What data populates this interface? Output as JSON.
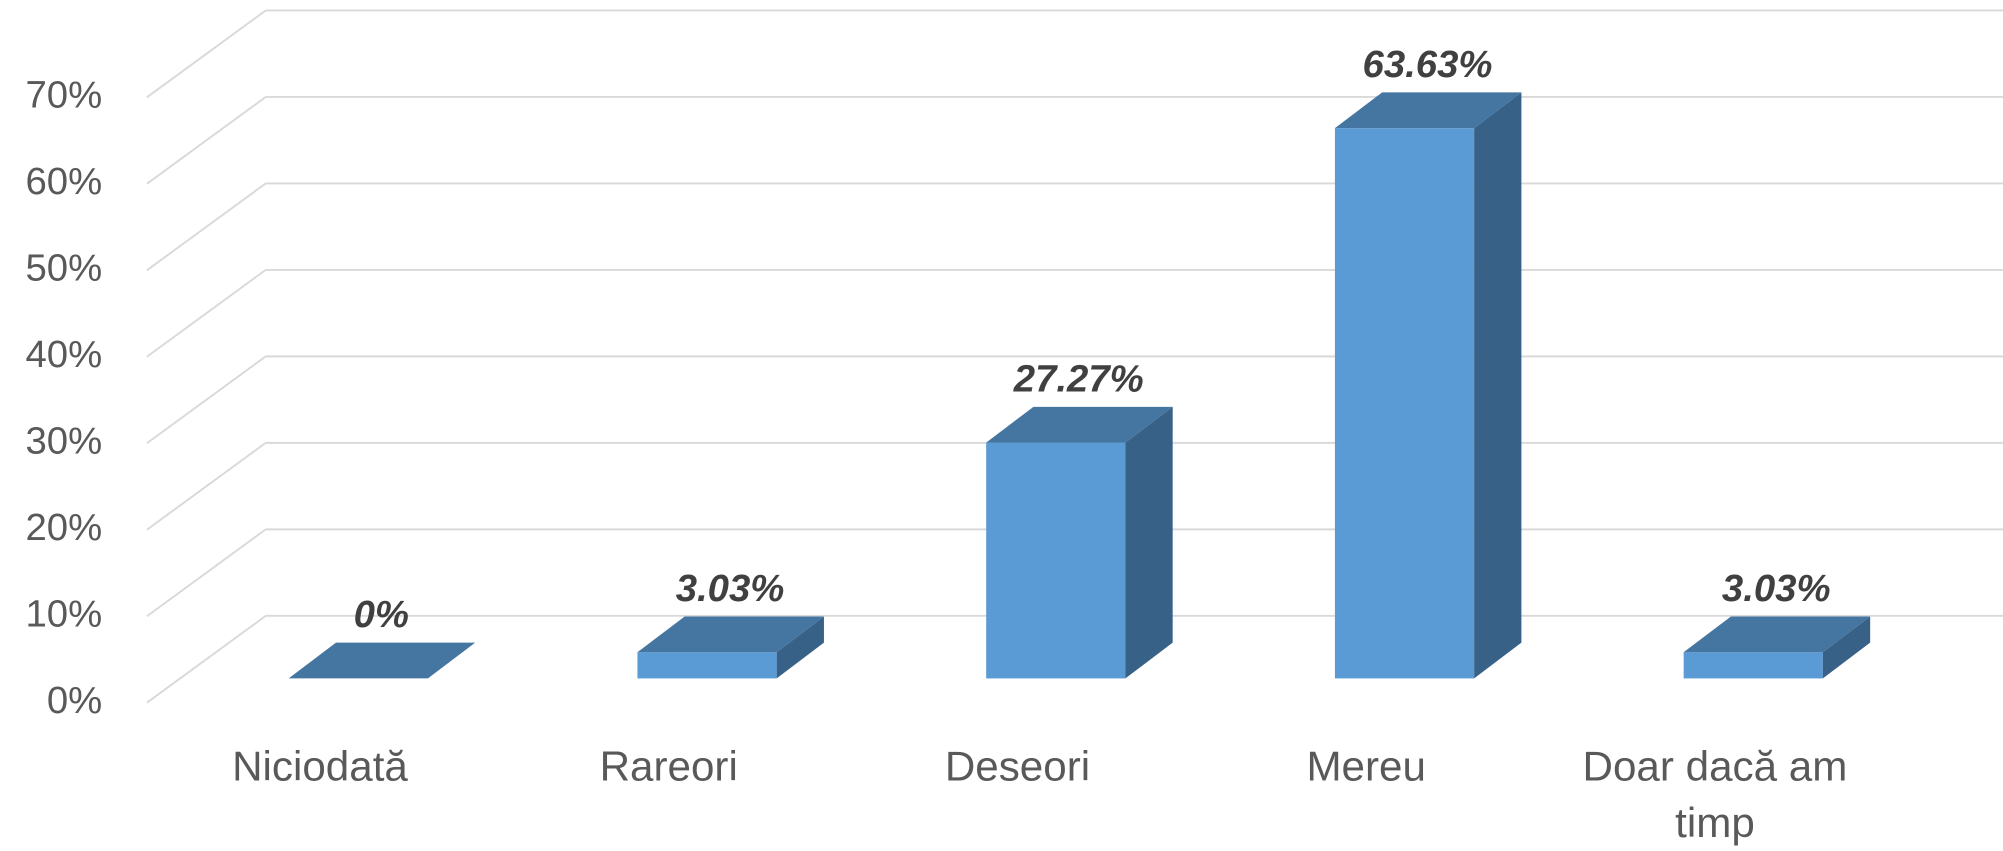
{
  "chart_data": {
    "type": "bar",
    "categories": [
      "Niciodată",
      "Rareori",
      "Deseori",
      "Mereu",
      "Doar dacă am timp"
    ],
    "values": [
      0,
      3.03,
      27.27,
      63.63,
      3.03
    ],
    "value_labels": [
      "0%",
      "3.03%",
      "27.27%",
      "63.63%",
      "3.03%"
    ],
    "color": "#5b9bd5",
    "ylim": [
      0,
      70
    ],
    "yticks": [
      {
        "value": 0,
        "label": "0%"
      },
      {
        "value": 10,
        "label": "10%"
      },
      {
        "value": 20,
        "label": "20%"
      },
      {
        "value": 30,
        "label": "30%"
      },
      {
        "value": 40,
        "label": "40%"
      },
      {
        "value": 50,
        "label": "50%"
      },
      {
        "value": 60,
        "label": "60%"
      },
      {
        "value": 70,
        "label": "70%"
      }
    ],
    "grid": true
  }
}
